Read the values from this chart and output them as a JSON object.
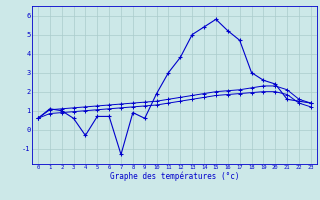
{
  "x": [
    0,
    1,
    2,
    3,
    4,
    5,
    6,
    7,
    8,
    9,
    10,
    11,
    12,
    13,
    14,
    15,
    16,
    17,
    18,
    19,
    20,
    21,
    22,
    23
  ],
  "temp_curve": [
    0.6,
    1.1,
    1.0,
    0.6,
    -0.3,
    0.7,
    0.7,
    -1.3,
    0.9,
    0.6,
    1.9,
    3.0,
    3.8,
    5.0,
    5.4,
    5.8,
    5.2,
    4.7,
    3.0,
    2.6,
    2.4,
    1.6,
    1.5,
    1.4
  ],
  "avg_high": [
    0.6,
    1.05,
    1.1,
    1.15,
    1.2,
    1.25,
    1.3,
    1.35,
    1.4,
    1.45,
    1.5,
    1.6,
    1.7,
    1.8,
    1.9,
    2.0,
    2.05,
    2.1,
    2.2,
    2.3,
    2.3,
    2.1,
    1.6,
    1.4
  ],
  "avg_low": [
    0.6,
    0.85,
    0.9,
    0.95,
    1.0,
    1.05,
    1.1,
    1.15,
    1.2,
    1.25,
    1.3,
    1.4,
    1.5,
    1.6,
    1.7,
    1.8,
    1.85,
    1.9,
    1.95,
    2.0,
    2.0,
    1.85,
    1.4,
    1.2
  ],
  "line_color": "#0000cc",
  "bg_color": "#cce8e8",
  "grid_color": "#aacccc",
  "xlabel": "Graphe des températures (°c)",
  "ylim": [
    -1.8,
    6.5
  ],
  "xlim": [
    -0.5,
    23.5
  ],
  "yticks": [
    -1,
    0,
    1,
    2,
    3,
    4,
    5,
    6
  ],
  "xticks": [
    0,
    1,
    2,
    3,
    4,
    5,
    6,
    7,
    8,
    9,
    10,
    11,
    12,
    13,
    14,
    15,
    16,
    17,
    18,
    19,
    20,
    21,
    22,
    23
  ]
}
